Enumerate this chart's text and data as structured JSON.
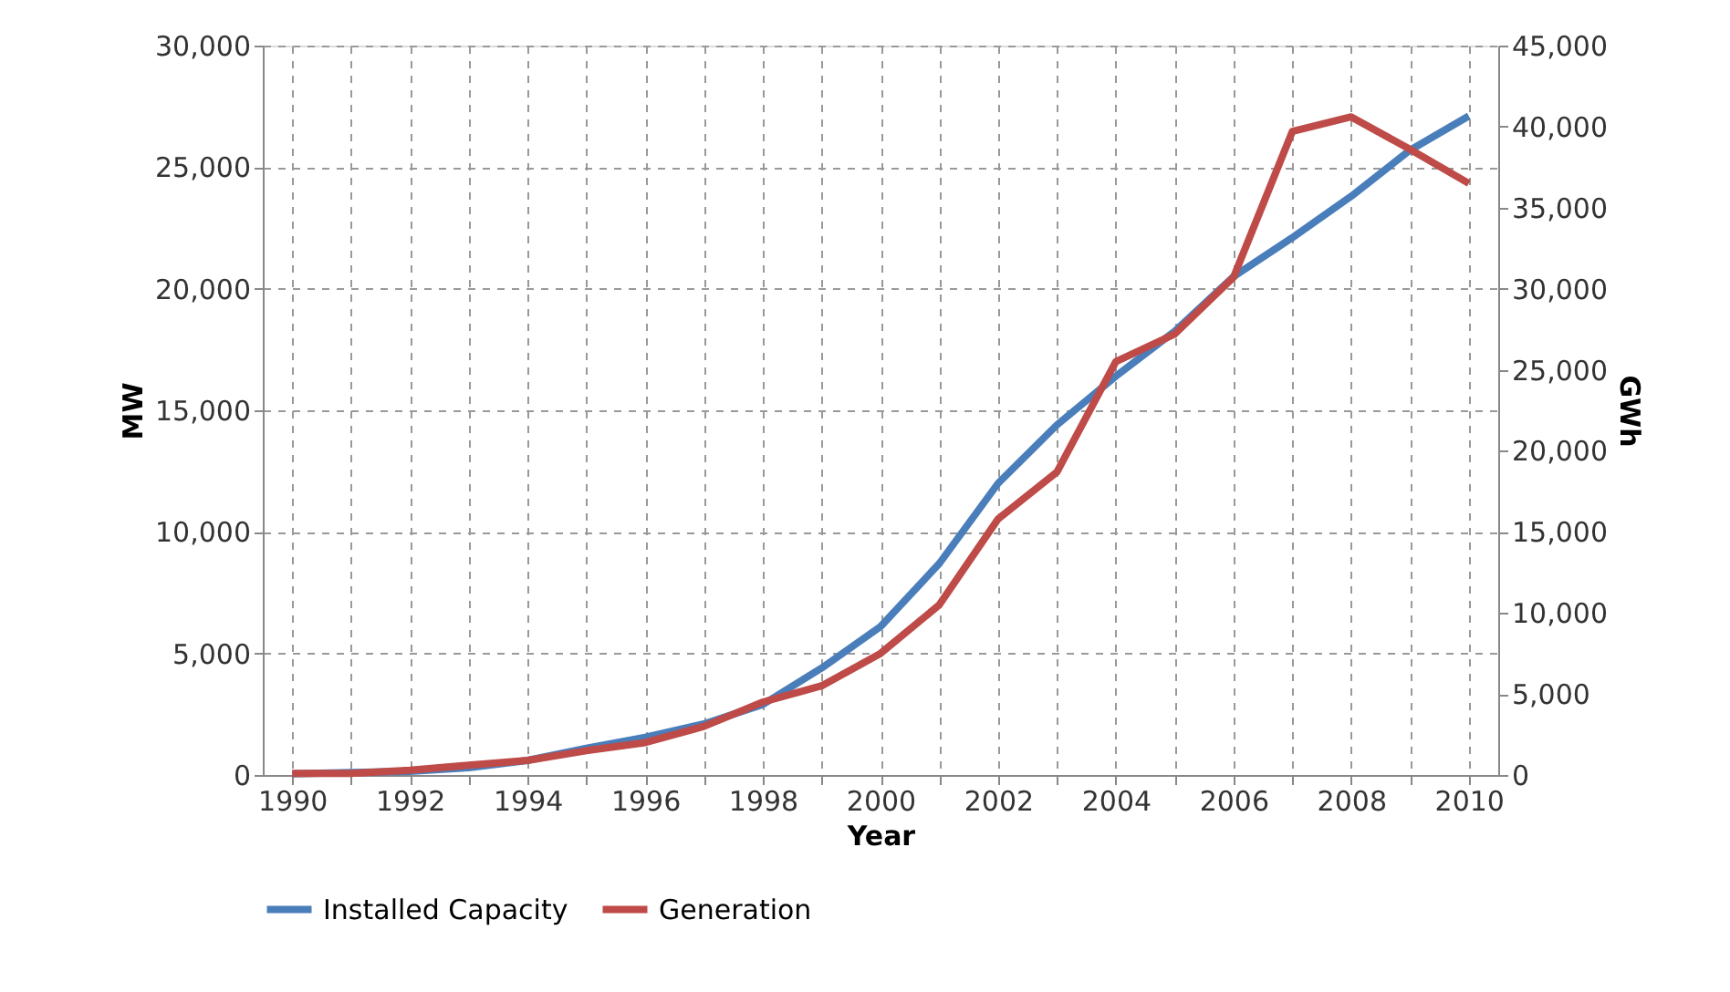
{
  "chart_data": {
    "type": "line",
    "xlabel": "Year",
    "ylabel": "MW",
    "y2label": "GWh",
    "x": [
      1990,
      1991,
      1992,
      1993,
      1994,
      1995,
      1996,
      1997,
      1998,
      1999,
      2000,
      2001,
      2002,
      2003,
      2004,
      2005,
      2006,
      2007,
      2008,
      2009,
      2010
    ],
    "series": [
      {
        "name": "Installed Capacity",
        "color": "#4a7ebb",
        "values": [
          50,
          100,
          150,
          300,
          600,
          1100,
          1550,
          2100,
          2900,
          4400,
          6100,
          8700,
          12000,
          14400,
          16400,
          18250,
          20500,
          22100,
          23800,
          25700,
          27100
        ]
      },
      {
        "name": "Generation",
        "color": "#be4b48",
        "axis": "y2",
        "values": [
          100,
          100,
          300,
          600,
          900,
          1500,
          2000,
          3000,
          4500,
          5500,
          7500,
          10500,
          15800,
          18700,
          25500,
          27200,
          30700,
          39700,
          40600,
          38600,
          36500
        ]
      }
    ],
    "xlim": [
      1989.5,
      2010.5
    ],
    "xticks": [
      1990,
      {
        "value": 1991,
        "label": null
      },
      1992,
      {
        "value": 1993,
        "label": null
      },
      1994,
      {
        "value": 1995,
        "label": null
      },
      1996,
      {
        "value": 1997,
        "label": null
      },
      1998,
      {
        "value": 1999,
        "label": null
      },
      2000,
      {
        "value": 2001,
        "label": null
      },
      2002,
      {
        "value": 2003,
        "label": null
      },
      2004,
      {
        "value": 2005,
        "label": null
      },
      2006,
      {
        "value": 2007,
        "label": null
      },
      2008,
      {
        "value": 2009,
        "label": null
      },
      2010
    ],
    "ylim": [
      0,
      30000
    ],
    "yticks": [
      0,
      {
        "value": 5000,
        "label": "5,000"
      },
      {
        "value": 10000,
        "label": "10,000"
      },
      {
        "value": 15000,
        "label": "15,000"
      },
      {
        "value": 20000,
        "label": "20,000"
      },
      {
        "value": 25000,
        "label": "25,000"
      },
      {
        "value": 30000,
        "label": "30,000"
      }
    ],
    "y2lim": [
      0,
      45000
    ],
    "y2ticks": [
      0,
      {
        "value": 5000,
        "label": "5,000"
      },
      {
        "value": 10000,
        "label": "10,000"
      },
      {
        "value": 15000,
        "label": "15,000"
      },
      {
        "value": 20000,
        "label": "20,000"
      },
      {
        "value": 25000,
        "label": "25,000"
      },
      {
        "value": 30000,
        "label": "30,000"
      },
      {
        "value": 35000,
        "label": "35,000"
      },
      {
        "value": 40000,
        "label": "40,000"
      },
      {
        "value": 45000,
        "label": "45,000"
      }
    ],
    "grid": true,
    "legend": "bottom"
  }
}
